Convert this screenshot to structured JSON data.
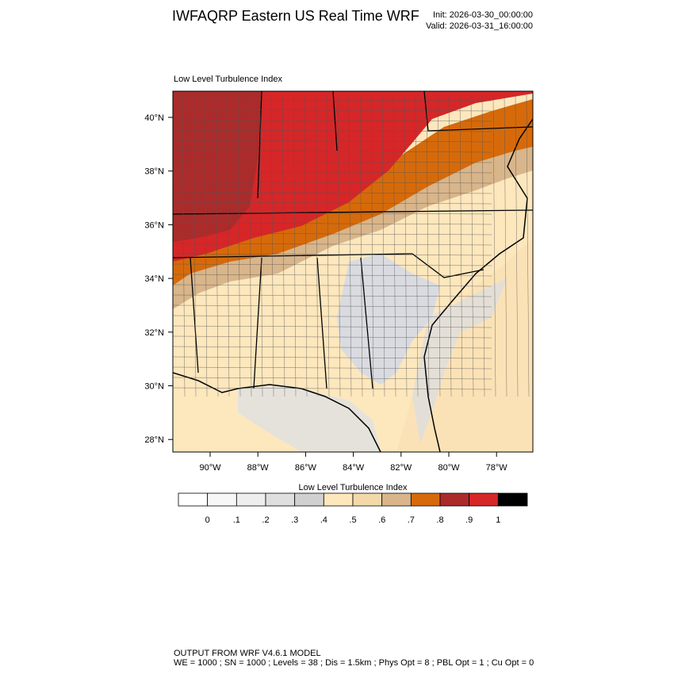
{
  "header": {
    "title": "IWFAQRP Eastern US Real Time WRF",
    "init": "Init: 2026-03-30_00:00:00",
    "valid": "Valid: 2026-03-31_16:00:00"
  },
  "map": {
    "subtitle": "Low Level Turbulence Index",
    "lat_labels": [
      "40°N",
      "38°N",
      "36°N",
      "34°N",
      "32°N",
      "30°N",
      "28°N"
    ],
    "lon_labels": [
      "90°W",
      "88°W",
      "86°W",
      "84°W",
      "82°W",
      "80°W",
      "78°W"
    ]
  },
  "colorbar": {
    "title": "Low Level Turbulence Index",
    "colors": [
      "#ffffff",
      "#f7f7f7",
      "#eeeeee",
      "#dfdfdf",
      "#d0d0d0",
      "#fde7bd",
      "#f3d9aa",
      "#d8b58a",
      "#d66a0a",
      "#ab2b2b",
      "#d62628",
      "#000000"
    ],
    "labels": [
      "0",
      ".1",
      ".2",
      ".3",
      ".4",
      ".5",
      ".6",
      ".7",
      ".8",
      ".9",
      "1"
    ]
  },
  "footer": {
    "line1": "OUTPUT FROM WRF V4.6.1 MODEL",
    "line2": "WE = 1000 ; SN = 1000 ; Levels = 38 ; Dis = 1.5km ; Phys Opt = 8 ; PBL Opt = 1 ; Cu Opt = 0"
  }
}
